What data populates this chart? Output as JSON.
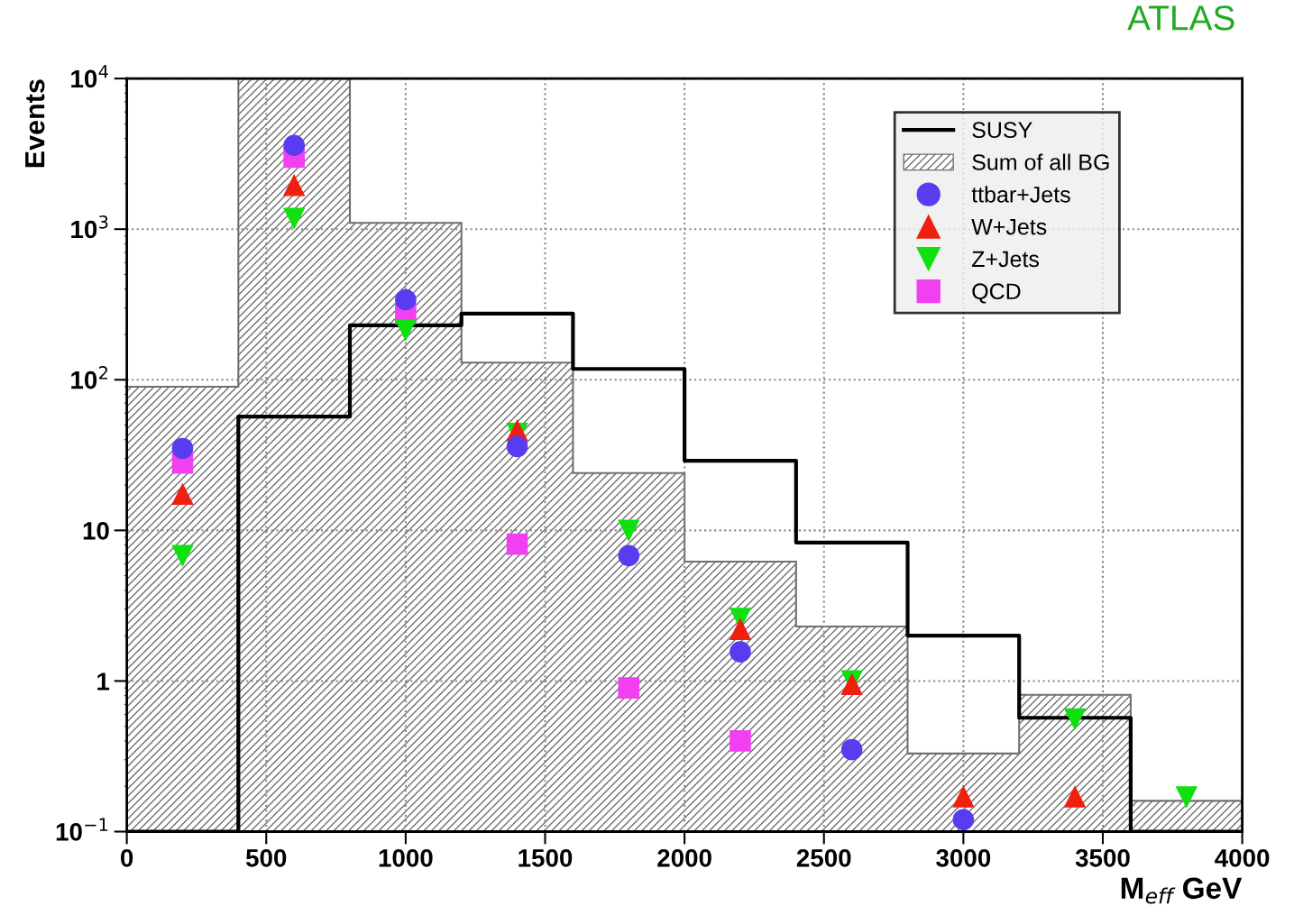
{
  "chart_data": {
    "type": "histogram",
    "ylabel": "Events",
    "xlabel": "M$_{eff}$ GeV",
    "annotations": [
      "ATLAS"
    ],
    "bins": [
      0,
      400,
      800,
      1200,
      1600,
      2000,
      2400,
      2800,
      3200,
      3600,
      4000
    ],
    "xlim": [
      0,
      4000
    ],
    "xticks": [
      0,
      500,
      1000,
      1500,
      2000,
      2500,
      3000,
      3500,
      4000
    ],
    "ylim": [
      0.1,
      10000
    ],
    "yticks": [
      {
        "value": 0.1,
        "label": "10$^{−1}$"
      },
      1,
      10,
      {
        "value": 100,
        "label": "10$^{2}$"
      },
      {
        "value": 1000,
        "label": "10$^{3}$"
      },
      {
        "value": 10000,
        "label": "10$^{4}$"
      }
    ],
    "log": "y",
    "grid": true,
    "legend": "top right",
    "series": [
      {
        "name": "SUSY",
        "line_style": "solid",
        "color": "#000000",
        "values": [
          0.1,
          57,
          230,
          275,
          118,
          29,
          8.3,
          2.0,
          0.57,
          0.1
        ]
      },
      {
        "name": "Sum of all BG",
        "color": "#707070",
        "values": [
          90,
          10000,
          1100,
          130,
          24,
          6.2,
          2.3,
          0.33,
          0.81,
          0.16
        ]
      },
      {
        "name": "ttbar+Jets",
        "type": "scatter",
        "marker": "circle",
        "color": "#5a3cf0",
        "x": [
          200,
          600,
          1000,
          1400,
          1800,
          2200,
          2600,
          3000
        ],
        "values": [
          35,
          3600,
          340,
          36,
          6.8,
          1.56,
          0.35,
          0.12
        ]
      },
      {
        "name": "W+Jets",
        "type": "scatter",
        "marker": "triangle",
        "color": "#f02010",
        "x": [
          200,
          600,
          1400,
          2200,
          2600,
          3000,
          3400
        ],
        "values": [
          17.4,
          1950,
          46,
          2.2,
          0.95,
          0.17,
          0.17
        ]
      },
      {
        "name": "Z+Jets",
        "type": "scatter",
        "marker": "triangle_down",
        "color": "#10e010",
        "x": [
          200,
          600,
          1000,
          1400,
          1800,
          2200,
          2600,
          3400,
          3800
        ],
        "values": [
          6.8,
          1180,
          214,
          44,
          10,
          2.6,
          1.0,
          0.56,
          0.17
        ]
      },
      {
        "name": "QCD",
        "type": "scatter",
        "marker": "square",
        "color": "#f040f0",
        "x": [
          200,
          600,
          1000,
          1400,
          1800,
          2200
        ],
        "values": [
          28,
          3000,
          275,
          8.1,
          0.9,
          0.4
        ]
      }
    ]
  }
}
